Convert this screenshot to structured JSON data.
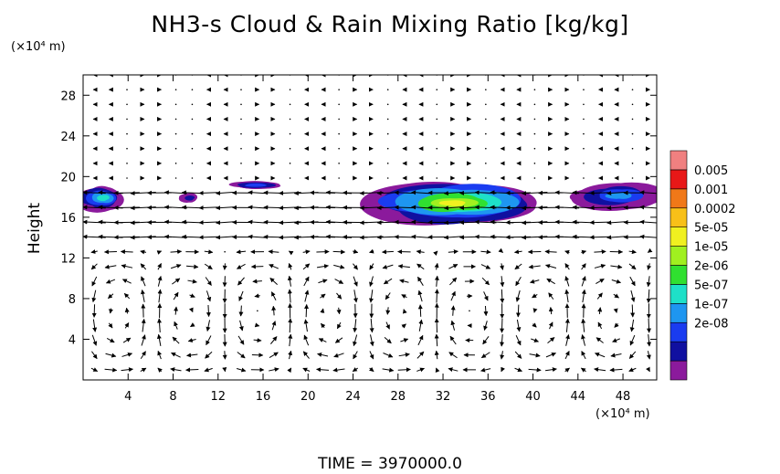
{
  "chart_data": {
    "type": "heatmap",
    "title": "NH3-s Cloud & Rain Mixing Ratio [kg/kg]",
    "ylabel": "Height",
    "x_unit": "(×10⁴ m)",
    "y_unit": "(×10⁴ m)",
    "time_label": "TIME  =  3970000.0",
    "x_range": [
      0,
      51
    ],
    "y_range": [
      0,
      30
    ],
    "x_ticks": [
      4,
      8,
      12,
      16,
      20,
      24,
      28,
      32,
      36,
      40,
      44,
      48
    ],
    "y_ticks": [
      4,
      8,
      12,
      16,
      20,
      24,
      28
    ],
    "colorbar": {
      "labels": [
        "0.005",
        "0.001",
        "0.0002",
        "5e-05",
        "1e-05",
        "2e-06",
        "5e-07",
        "1e-07",
        "2e-08"
      ],
      "colors": [
        "#8b1a9c",
        "#1010a0",
        "#1a3cf0",
        "#1e96f0",
        "#1ee0c8",
        "#30e030",
        "#a0f020",
        "#f0f020",
        "#f8c018",
        "#f07818",
        "#e81818",
        "#f08080"
      ]
    },
    "cloud_regions": [
      {
        "x_start": 0,
        "x_end": 3.5,
        "y_bottom": 16.8,
        "y_top": 19.0,
        "max_level": 4
      },
      {
        "x_start": 8.8,
        "x_end": 10.2,
        "y_bottom": 17.5,
        "y_top": 18.3,
        "max_level": 1
      },
      {
        "x_start": 13.2,
        "x_end": 17.5,
        "y_bottom": 18.8,
        "y_top": 19.5,
        "max_level": 2
      },
      {
        "x_start": 26.5,
        "x_end": 39.5,
        "y_bottom": 15.5,
        "y_top": 19.3,
        "max_level": 7
      },
      {
        "x_start": 44.5,
        "x_end": 51,
        "y_bottom": 17.0,
        "y_top": 19.2,
        "max_level": 3
      }
    ],
    "grid": false
  }
}
